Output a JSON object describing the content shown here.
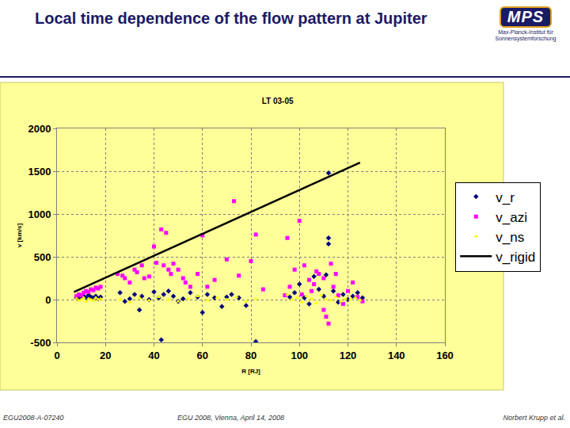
{
  "slide": {
    "title": "Local time dependence of the flow pattern at Jupiter",
    "logo": {
      "text": "MPS",
      "subtitle": "Max-Planck-Institut für Sonnensystemforschung"
    },
    "footer": [
      "EGU2008-A-07240",
      "EGU 2008, Vienna, April 14, 2008",
      "Norbert Krupp et al."
    ]
  },
  "chart_data": {
    "type": "scatter",
    "title": "LT 03-05",
    "x_label": "R [RJ]",
    "y_label": "v [km/s]",
    "xlim": [
      0,
      160
    ],
    "ylim": [
      -500,
      2000
    ],
    "xticks": [
      0,
      20,
      40,
      60,
      80,
      100,
      120,
      140,
      160
    ],
    "yticks": [
      -500,
      0,
      500,
      1000,
      1500,
      2000
    ],
    "grid": true,
    "legend": "right",
    "series": [
      {
        "name": "v_r",
        "color": "#000080",
        "marker": "diamond",
        "x": [
          8,
          9,
          10,
          11,
          12,
          13,
          14,
          15,
          16,
          17,
          18,
          26,
          28,
          30,
          32,
          34,
          35,
          38,
          40,
          42,
          43,
          44,
          46,
          48,
          50,
          52,
          55,
          58,
          60,
          62,
          65,
          68,
          70,
          72,
          75,
          78,
          82,
          96,
          98,
          100,
          102,
          104,
          106,
          108,
          110,
          111,
          112,
          112,
          112,
          114,
          116,
          118,
          120,
          122,
          124,
          126
        ],
        "values": [
          20,
          10,
          30,
          40,
          20,
          50,
          30,
          20,
          40,
          10,
          30,
          80,
          -20,
          10,
          60,
          -120,
          40,
          0,
          90,
          20,
          -470,
          60,
          100,
          40,
          -20,
          10,
          80,
          30,
          -150,
          60,
          20,
          -80,
          30,
          60,
          20,
          -70,
          -490,
          30,
          80,
          180,
          20,
          -50,
          270,
          120,
          40,
          290,
          1480,
          720,
          650,
          100,
          -30,
          60,
          0,
          40,
          80,
          20
        ]
      },
      {
        "name": "v_azi",
        "color": "#ff00ff",
        "marker": "square",
        "x": [
          8,
          9,
          10,
          11,
          12,
          13,
          14,
          15,
          16,
          17,
          18,
          25,
          27,
          28,
          30,
          32,
          33,
          35,
          36,
          38,
          40,
          41,
          43,
          44,
          45,
          46,
          47,
          48,
          50,
          52,
          53,
          55,
          58,
          60,
          62,
          65,
          70,
          73,
          75,
          80,
          82,
          85,
          94,
          95,
          96,
          98,
          100,
          101,
          102,
          104,
          105,
          106,
          107,
          108,
          110,
          110,
          111,
          112,
          113,
          114,
          115,
          116,
          118,
          120,
          122,
          124,
          126
        ],
        "values": [
          40,
          60,
          50,
          80,
          100,
          90,
          120,
          110,
          140,
          130,
          150,
          300,
          280,
          250,
          200,
          350,
          320,
          400,
          250,
          270,
          620,
          430,
          820,
          400,
          780,
          350,
          300,
          420,
          350,
          250,
          200,
          150,
          300,
          750,
          150,
          230,
          470,
          1150,
          280,
          450,
          760,
          120,
          50,
          720,
          150,
          350,
          920,
          60,
          400,
          230,
          100,
          180,
          330,
          300,
          -120,
          250,
          -200,
          -280,
          420,
          150,
          300,
          50,
          -50,
          100,
          200,
          30,
          -20
        ]
      },
      {
        "name": "v_ns",
        "color": "#ffff00",
        "marker": "triangle-up",
        "x": [
          8,
          9,
          10,
          11,
          12,
          13,
          14,
          15,
          16,
          17,
          18,
          26,
          30,
          34,
          38,
          42,
          46,
          50,
          54,
          58,
          62,
          66,
          70,
          74,
          78,
          82,
          95,
          97,
          99,
          101,
          103,
          105,
          107,
          109,
          111,
          113,
          115,
          117,
          119,
          121,
          123,
          125
        ],
        "values": [
          10,
          -10,
          0,
          20,
          -20,
          10,
          0,
          -10,
          20,
          0,
          10,
          0,
          -30,
          20,
          -10,
          30,
          0,
          -20,
          10,
          40,
          -10,
          20,
          0,
          30,
          -20,
          10,
          60,
          0,
          20,
          -30,
          40,
          10,
          -40,
          50,
          0,
          -10,
          30,
          -20,
          10,
          0,
          20,
          -10
        ]
      },
      {
        "name": "v_rigid",
        "color": "#000000",
        "type": "line",
        "line_style": "solid",
        "x": [
          7,
          125
        ],
        "values": [
          90,
          1600
        ]
      }
    ]
  }
}
